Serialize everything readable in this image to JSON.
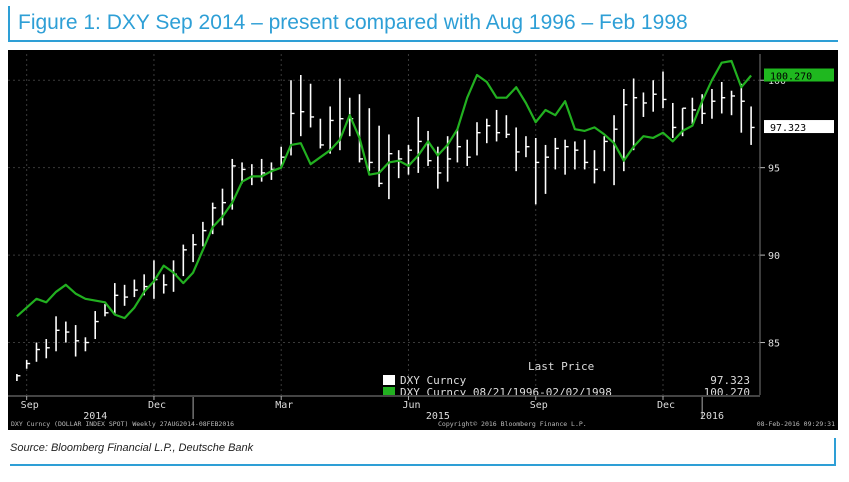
{
  "figure_title": "Figure 1: DXY Sep 2014 – present compared with Aug 1996 – Feb 1998",
  "source": "Source: Bloomberg Financial L.P.,  Deutsche Bank",
  "footer": {
    "left": "DXY Curncy (DOLLAR INDEX SPOT) Weekly 27AUG2014-08FEB2016",
    "center": "Copyright© 2016 Bloomberg Finance L.P.",
    "right": "08-Feb-2016 09:29:31"
  },
  "colors": {
    "accent": "#2e9fd6",
    "background": "#000000",
    "candles": "#ffffff",
    "comparison_line": "#22b020",
    "comparison_label_bg": "#1fb81f",
    "current_label_bg": "#ffffff",
    "grid": "#3a3a3a"
  },
  "chart_data": {
    "type": "line",
    "ylim": [
      82,
      101.5
    ],
    "yticks": [
      85,
      90,
      95,
      100
    ],
    "grid": true,
    "legend": {
      "placement": "bottom-right",
      "header": "Last Price",
      "entries": [
        {
          "label": "DXY Curncy",
          "value": "97.323",
          "color": "#ffffff"
        },
        {
          "label": "DXY Curncy 08/21/1996-02/02/1998",
          "value": "100.270",
          "color": "#22b020"
        }
      ]
    },
    "last_labels": [
      {
        "text": "97.323",
        "value": 97.323,
        "series": "DXY Curncy"
      },
      {
        "text": "100.270",
        "value": 100.27,
        "series": "DXY Curncy 08/21/1996-02/02/1998"
      }
    ],
    "x_month_labels": [
      {
        "label": "Sep",
        "week": 1
      },
      {
        "label": "Dec",
        "week": 14
      },
      {
        "label": "Mar",
        "week": 27
      },
      {
        "label": "Jun",
        "week": 40
      },
      {
        "label": "Sep",
        "week": 53
      },
      {
        "label": "Dec",
        "week": 66
      }
    ],
    "x_year_labels": [
      {
        "label": "2014",
        "week": 8
      },
      {
        "label": "2015",
        "week": 43
      },
      {
        "label": "2016",
        "week": 71
      }
    ],
    "year_dividers": [
      18,
      70
    ],
    "weeks": 76,
    "series": [
      {
        "name": "DXY Curncy",
        "style": "ohlc",
        "highs": [
          83.2,
          84.0,
          85.0,
          85.2,
          86.5,
          86.2,
          86.0,
          85.3,
          86.8,
          87.2,
          88.4,
          88.3,
          88.6,
          88.9,
          89.7,
          88.9,
          89.7,
          90.6,
          91.2,
          91.9,
          93.0,
          93.8,
          95.5,
          95.3,
          95.2,
          95.5,
          95.3,
          96.2,
          100.0,
          100.3,
          99.8,
          97.8,
          98.5,
          100.1,
          99.0,
          99.2,
          98.4,
          97.4,
          96.9,
          96.0,
          96.3,
          97.9,
          97.1,
          96.2,
          96.8,
          97.2,
          96.6,
          97.6,
          97.8,
          98.3,
          98.0,
          97.3,
          96.8,
          96.7,
          96.3,
          96.7,
          96.6,
          96.5,
          96.6,
          96.0,
          96.8,
          98.0,
          99.5,
          100.1,
          99.3,
          100.0,
          100.5,
          98.7,
          98.4,
          99.0,
          99.2,
          99.5,
          99.9,
          99.4,
          99.8,
          98.5
        ],
        "lows": [
          82.8,
          83.5,
          83.9,
          84.1,
          84.5,
          85.0,
          84.2,
          84.5,
          85.2,
          86.5,
          86.6,
          87.1,
          87.6,
          87.7,
          87.5,
          87.8,
          87.9,
          88.8,
          89.6,
          90.5,
          91.2,
          91.7,
          92.6,
          94.1,
          94.0,
          94.2,
          94.3,
          95.0,
          95.7,
          96.8,
          97.3,
          96.1,
          95.8,
          96.0,
          96.8,
          95.3,
          94.8,
          93.9,
          93.2,
          94.4,
          94.6,
          94.7,
          95.1,
          93.8,
          94.2,
          95.3,
          95.1,
          95.7,
          96.4,
          96.5,
          96.7,
          94.8,
          95.6,
          92.9,
          93.5,
          94.9,
          94.6,
          94.9,
          94.9,
          94.1,
          94.8,
          94.0,
          94.8,
          96.0,
          97.9,
          98.2,
          98.4,
          96.7,
          96.8,
          97.5,
          97.5,
          97.8,
          98.1,
          98.0,
          97.0,
          96.3
        ],
        "closes": [
          83.1,
          83.8,
          84.6,
          84.7,
          85.7,
          85.6,
          85.1,
          85.0,
          86.2,
          86.7,
          87.7,
          87.6,
          88.0,
          88.2,
          88.6,
          88.3,
          88.9,
          90.3,
          90.6,
          91.4,
          92.7,
          93.0,
          95.1,
          94.9,
          94.5,
          94.7,
          94.9,
          95.6,
          98.1,
          98.2,
          97.9,
          96.3,
          97.7,
          97.8,
          97.8,
          95.5,
          95.3,
          94.1,
          95.8,
          95.5,
          96.0,
          96.5,
          95.4,
          94.7,
          95.5,
          96.2,
          95.6,
          97.0,
          97.4,
          97.0,
          96.9,
          95.9,
          96.2,
          95.3,
          95.6,
          96.1,
          96.2,
          96.0,
          95.3,
          94.9,
          96.5,
          97.2,
          98.6,
          99.0,
          98.7,
          99.2,
          98.9,
          97.3,
          98.4,
          98.3,
          98.1,
          98.8,
          99.0,
          99.1,
          98.8,
          97.3
        ]
      },
      {
        "name": "DXY Curncy 08/21/1996-02/02/1998",
        "style": "line",
        "values": [
          86.5,
          87.0,
          87.5,
          87.3,
          87.9,
          88.3,
          87.8,
          87.5,
          87.4,
          87.3,
          86.6,
          86.4,
          87.0,
          87.9,
          88.5,
          89.4,
          89.0,
          88.4,
          89.0,
          90.3,
          91.6,
          92.2,
          93.0,
          94.2,
          94.5,
          94.5,
          94.8,
          95.0,
          96.3,
          96.4,
          95.2,
          95.6,
          96.0,
          96.6,
          98.0,
          96.7,
          94.6,
          94.7,
          95.3,
          95.4,
          95.1,
          95.7,
          96.5,
          95.7,
          96.3,
          97.2,
          99.0,
          100.3,
          99.9,
          99.0,
          99.0,
          99.6,
          98.7,
          97.6,
          98.3,
          98.0,
          98.8,
          97.2,
          97.1,
          97.3,
          96.9,
          96.4,
          95.4,
          96.2,
          96.8,
          96.7,
          97.0,
          96.5,
          97.1,
          97.4,
          98.8,
          100.0,
          101.0,
          101.1,
          99.6,
          100.27
        ]
      }
    ]
  }
}
